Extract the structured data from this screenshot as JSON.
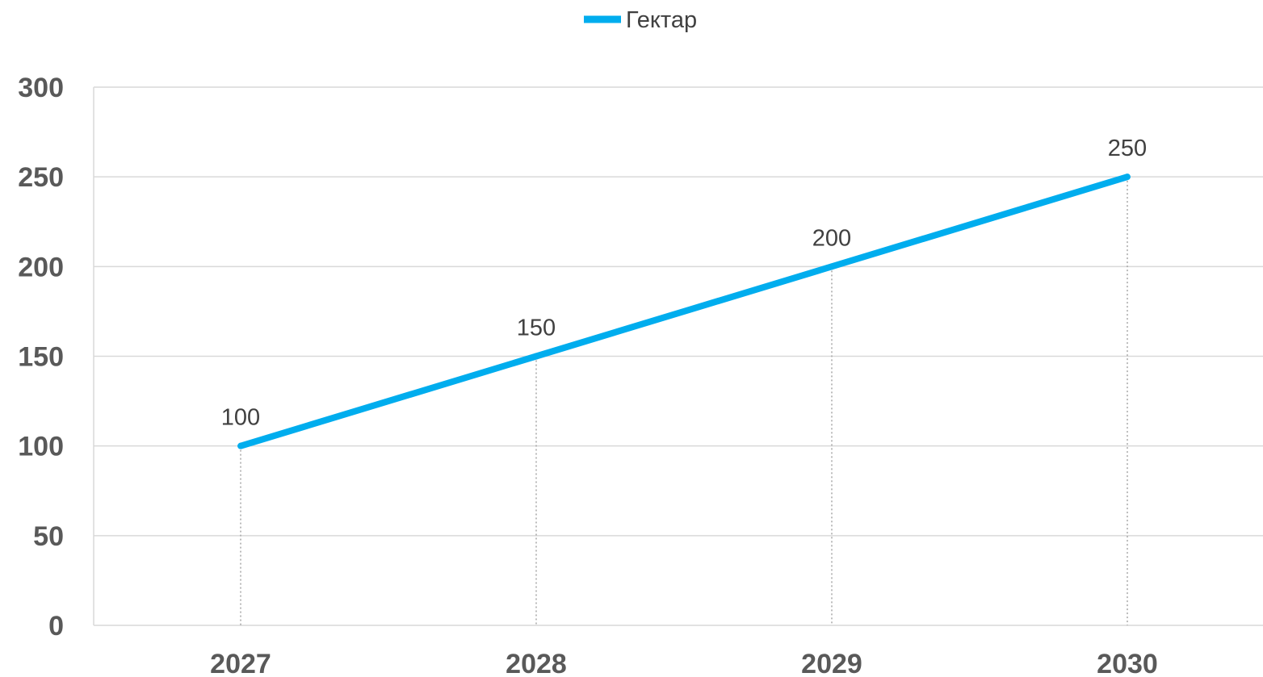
{
  "chart_data": {
    "type": "line",
    "categories": [
      "2027",
      "2028",
      "2029",
      "2030"
    ],
    "series": [
      {
        "name": "Гектар",
        "values": [
          100,
          150,
          200,
          250
        ],
        "color": "#00adee"
      }
    ],
    "ylim": [
      0,
      300
    ],
    "yticks": [
      0,
      50,
      100,
      150,
      200,
      250,
      300
    ],
    "data_labels": [
      "100",
      "150",
      "200",
      "250"
    ],
    "legend_position": "top-center",
    "grid": "horizontal",
    "drop_lines": true
  }
}
